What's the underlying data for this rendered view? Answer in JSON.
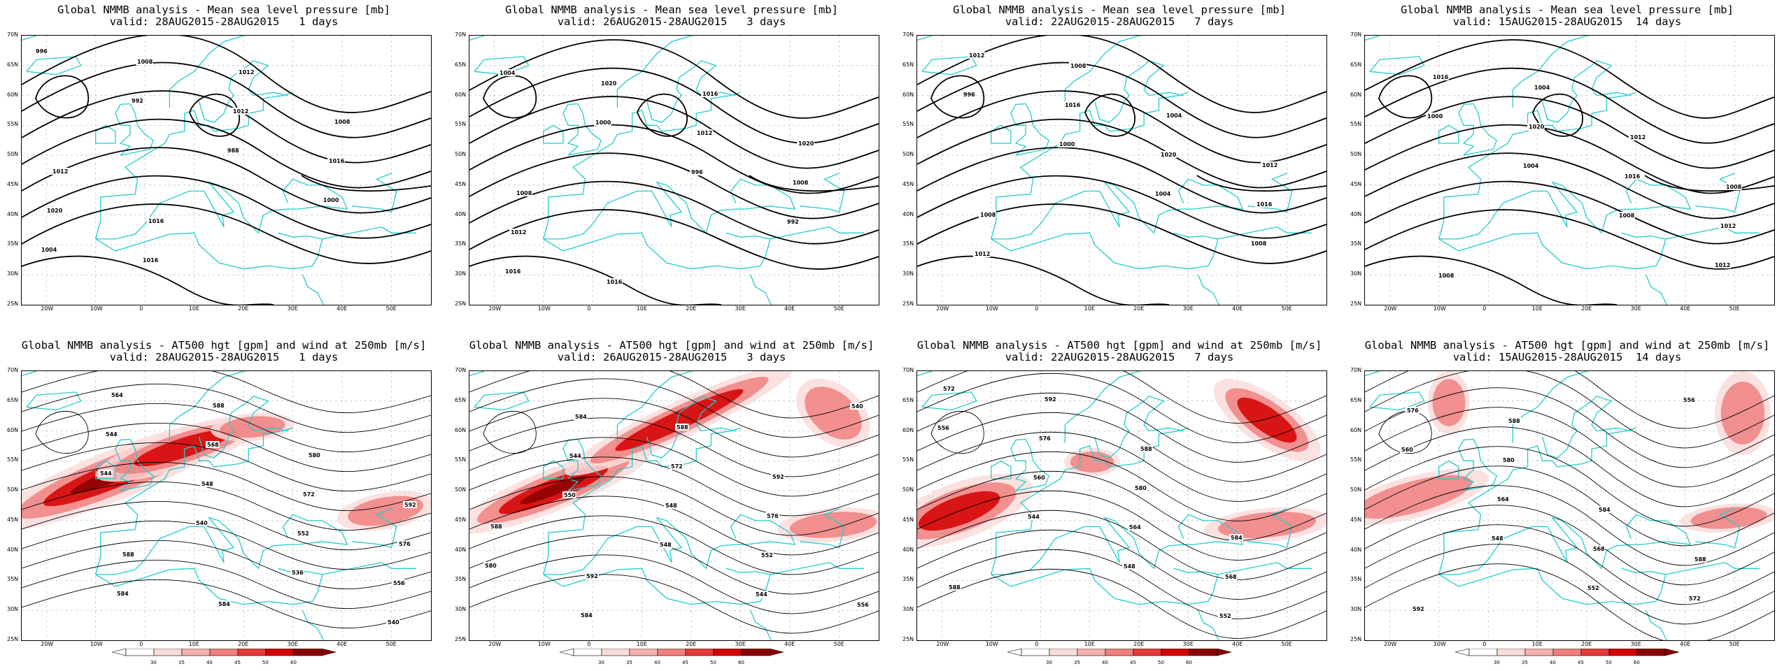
{
  "panels": [
    {
      "title": "Global NMMB analysis - Mean sea level pressure [mb]",
      "valid": "valid: 28AUG2015-28AUG2015   1 days",
      "kind": "mslp",
      "labels": [
        "996",
        "992",
        "988",
        "1000",
        "1004",
        "1008",
        "1012",
        "1016",
        "1020",
        "1016",
        "1012",
        "1008",
        "1012",
        "1016"
      ]
    },
    {
      "title": "Global NMMB analysis - Mean sea level pressure [mb]",
      "valid": "valid: 26AUG2015-28AUG2015   3 days",
      "kind": "mslp",
      "labels": [
        "1004",
        "1000",
        "996",
        "992",
        "1016",
        "1020",
        "1012",
        "1008",
        "1012",
        "1016",
        "1016",
        "1020",
        "1008"
      ]
    },
    {
      "title": "Global NMMB analysis - Mean sea level pressure [mb]",
      "valid": "valid: 22AUG2015-28AUG2015   7 days",
      "kind": "mslp",
      "labels": [
        "996",
        "1000",
        "1004",
        "1008",
        "1012",
        "1016",
        "1020",
        "1016",
        "1012",
        "1008",
        "1004",
        "1012",
        "1008"
      ]
    },
    {
      "title": "Global NMMB analysis - Mean sea level pressure [mb]",
      "valid": "valid: 15AUG2015-28AUG2015  14 days",
      "kind": "mslp",
      "labels": [
        "1000",
        "1004",
        "1008",
        "1012",
        "1016",
        "1020",
        "1016",
        "1012",
        "1008",
        "1004",
        "1012",
        "1008"
      ]
    },
    {
      "title": "Global NMMB analysis - AT500 hgt [gpm] and wind at 250mb [m/s]",
      "valid": "valid: 28AUG2015-28AUG2015   1 days",
      "kind": "z500",
      "labels": [
        "544",
        "540",
        "536",
        "540",
        "544",
        "548",
        "552",
        "556",
        "564",
        "568",
        "572",
        "576",
        "584",
        "588",
        "580",
        "592",
        "588",
        "584"
      ]
    },
    {
      "title": "Global NMMB analysis - AT500 hgt [gpm] and wind at 250mb [m/s]",
      "valid": "valid: 26AUG2015-28AUG2015   3 days",
      "kind": "z500",
      "labels": [
        "550",
        "548",
        "544",
        "540",
        "544",
        "548",
        "552",
        "556",
        "584",
        "572",
        "576",
        "580",
        "584",
        "588",
        "592",
        "588",
        "592"
      ]
    },
    {
      "title": "Global NMMB analysis - AT500 hgt [gpm] and wind at 250mb [m/s]",
      "valid": "valid: 22AUG2015-28AUG2015   7 days",
      "kind": "z500",
      "labels": [
        "544",
        "548",
        "552",
        "556",
        "560",
        "564",
        "568",
        "572",
        "576",
        "580",
        "584",
        "588",
        "592",
        "588"
      ]
    },
    {
      "title": "Global NMMB analysis - AT500 hgt [gpm] and wind at 250mb [m/s]",
      "valid": "valid: 15AUG2015-28AUG2015  14 days",
      "kind": "z500",
      "labels": [
        "548",
        "552",
        "556",
        "560",
        "564",
        "568",
        "572",
        "576",
        "580",
        "584",
        "588",
        "592",
        "588"
      ]
    }
  ],
  "axes": {
    "lat_labels": [
      "70N",
      "65N",
      "60N",
      "55N",
      "50N",
      "45N",
      "40N",
      "35N",
      "30N",
      "25N"
    ],
    "lon_labels": [
      "20W",
      "10W",
      "0",
      "10E",
      "20E",
      "30E",
      "40E",
      "50E"
    ]
  },
  "colorbar": {
    "ticks": [
      "30",
      "35",
      "40",
      "45",
      "50",
      "60"
    ],
    "colors": [
      "#ffffff",
      "#fbdcdc",
      "#f6b2b2",
      "#f08080",
      "#e53b3b",
      "#d40000",
      "#8a0000"
    ]
  },
  "colors": {
    "coast": "#22cccc",
    "contour": "#000000",
    "grid": "#bbbbbb"
  }
}
